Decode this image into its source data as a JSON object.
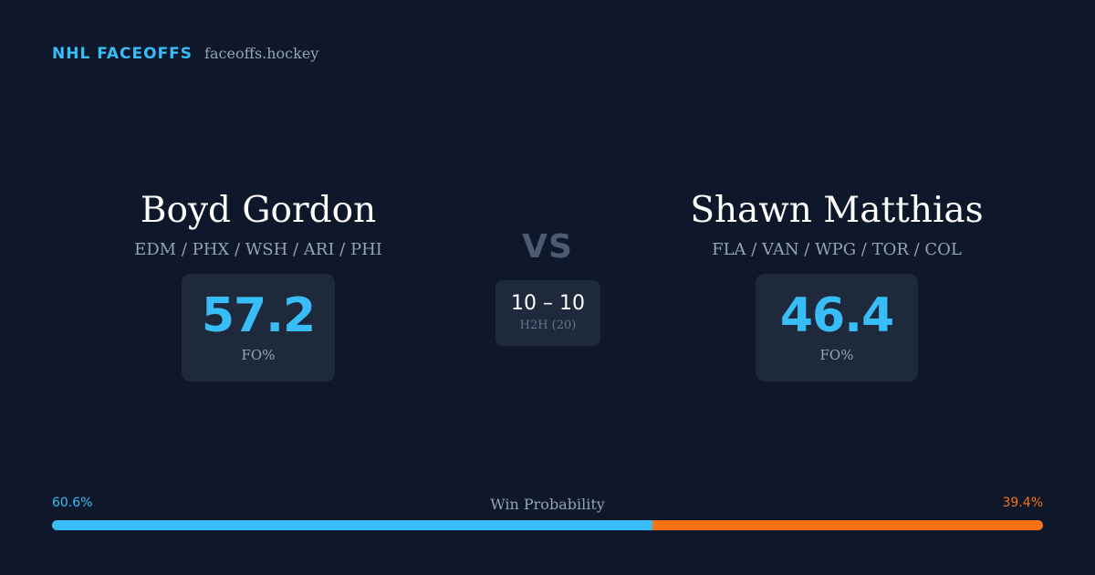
{
  "brand": {
    "name": "NHL FACEOFFS",
    "domain": "faceoffs.hockey"
  },
  "players": {
    "left": {
      "name": "Boyd Gordon",
      "teams": "EDM / PHX / WSH / ARI / PHI",
      "stat_value": "57.2",
      "stat_label": "FO%"
    },
    "right": {
      "name": "Shawn Matthias",
      "teams": "FLA / VAN / WPG / TOR / COL",
      "stat_value": "46.4",
      "stat_label": "FO%"
    }
  },
  "versus": {
    "label": "VS",
    "h2h_score": "10 – 10",
    "h2h_label": "H2H (20)"
  },
  "win_probability": {
    "title": "Win Probability",
    "left_label": "60.6%",
    "right_label": "39.4%",
    "left_fraction": 0.606,
    "right_fraction": 0.394
  },
  "colors": {
    "background": "#0f172a",
    "card": "#1e293b",
    "accent_left": "#38bdf8",
    "accent_right": "#f97316",
    "muted": "#94a3b8"
  }
}
